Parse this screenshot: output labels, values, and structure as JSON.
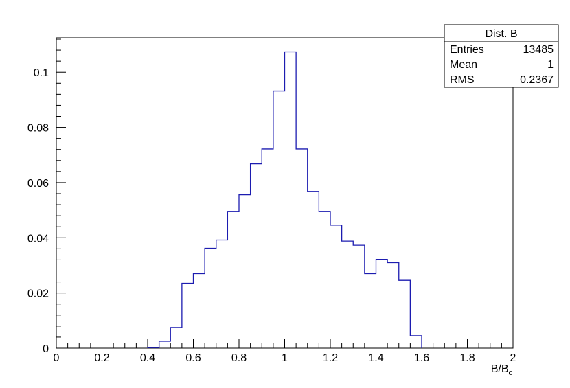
{
  "chart_data": {
    "type": "bar",
    "style": "step-histogram",
    "xlabel": "B/B_c",
    "xlabel_main": "B/B",
    "xlabel_sub": "c",
    "xlim": [
      0,
      2
    ],
    "ylim": [
      0,
      0.1125
    ],
    "x_ticks": [
      "0",
      "0.2",
      "0.4",
      "0.6",
      "0.8",
      "1",
      "1.2",
      "1.4",
      "1.6",
      "1.8",
      "2"
    ],
    "y_ticks": [
      "0",
      "0.02",
      "0.04",
      "0.06",
      "0.08",
      "0.1"
    ],
    "bin_width": 0.05,
    "bins": [
      {
        "x0": 0.4,
        "value": 0.0002
      },
      {
        "x0": 0.45,
        "value": 0.0025
      },
      {
        "x0": 0.5,
        "value": 0.0075
      },
      {
        "x0": 0.55,
        "value": 0.0235
      },
      {
        "x0": 0.6,
        "value": 0.027
      },
      {
        "x0": 0.65,
        "value": 0.0362
      },
      {
        "x0": 0.7,
        "value": 0.0392
      },
      {
        "x0": 0.75,
        "value": 0.0496
      },
      {
        "x0": 0.8,
        "value": 0.0556
      },
      {
        "x0": 0.85,
        "value": 0.0668
      },
      {
        "x0": 0.9,
        "value": 0.0722
      },
      {
        "x0": 0.95,
        "value": 0.0932
      },
      {
        "x0": 1.0,
        "value": 0.1074
      },
      {
        "x0": 1.05,
        "value": 0.0722
      },
      {
        "x0": 1.1,
        "value": 0.0568
      },
      {
        "x0": 1.15,
        "value": 0.0496
      },
      {
        "x0": 1.2,
        "value": 0.0446
      },
      {
        "x0": 1.25,
        "value": 0.0388
      },
      {
        "x0": 1.3,
        "value": 0.0373
      },
      {
        "x0": 1.35,
        "value": 0.027
      },
      {
        "x0": 1.4,
        "value": 0.0322
      },
      {
        "x0": 1.45,
        "value": 0.031
      },
      {
        "x0": 1.5,
        "value": 0.0246
      },
      {
        "x0": 1.55,
        "value": 0.0045
      }
    ],
    "line_color": "#1c1cb0",
    "grid": false,
    "legend": "none"
  },
  "stats_box": {
    "title": "Dist. B",
    "rows": [
      {
        "label": "Entries",
        "value": "13485"
      },
      {
        "label": "Mean",
        "value": "1"
      },
      {
        "label": "RMS",
        "value": "0.2367"
      }
    ],
    "placement": "top-right"
  }
}
